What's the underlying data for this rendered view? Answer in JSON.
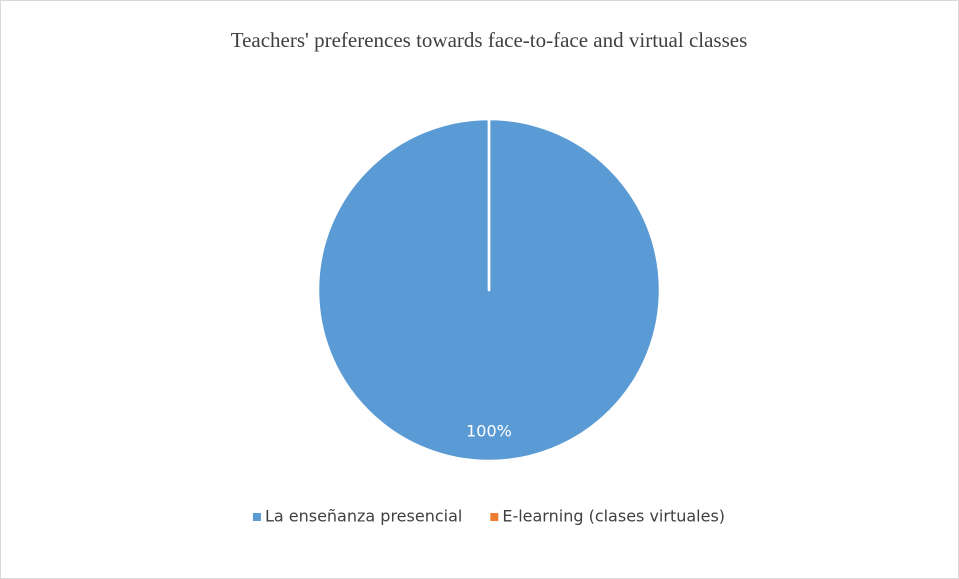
{
  "chart_data": {
    "type": "pie",
    "title": "Teachers' preferences towards face-to-face and virtual classes",
    "categories": [
      "La enseñanza presencial",
      "E-learning (clases virtuales)"
    ],
    "values": [
      100,
      0
    ],
    "value_labels": [
      "100%",
      null
    ],
    "colors": [
      "#5b9bd5",
      "#ed7d31"
    ],
    "legend": "bottom"
  }
}
